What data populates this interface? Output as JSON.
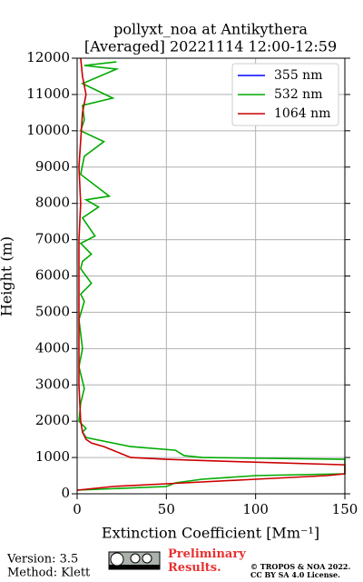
{
  "chart_data": {
    "type": "line",
    "title": "pollyxt_noa at Antikythera",
    "subtitle": "[Averaged] 20221114 12:00-12:59",
    "x_label": "Extinction Coefficient [Mm⁻¹]",
    "y_label": "Height (m)",
    "xlim": [
      0,
      150
    ],
    "ylim": [
      0,
      12000
    ],
    "xticks": [
      0,
      50,
      100,
      150
    ],
    "yticks": [
      0,
      1000,
      2000,
      3000,
      4000,
      5000,
      6000,
      7000,
      8000,
      9000,
      10000,
      11000,
      12000
    ],
    "grid": true,
    "legend": "upper right",
    "series": [
      {
        "name": "355 nm",
        "color": "#0000ff",
        "x": [],
        "y": []
      },
      {
        "name": "532 nm",
        "color": "#00aa00",
        "x": [
          0,
          50,
          55,
          70,
          100,
          150,
          150,
          70,
          60,
          55,
          30,
          20,
          5,
          3,
          5,
          3,
          1,
          2,
          4,
          1,
          3,
          1,
          4,
          2,
          8,
          2,
          3,
          8,
          2,
          10,
          3,
          12,
          5,
          18,
          2,
          4,
          15,
          2,
          4,
          3,
          20,
          3,
          22,
          4,
          22
        ],
        "y": [
          100,
          200,
          300,
          400,
          500,
          550,
          950,
          1000,
          1050,
          1200,
          1300,
          1400,
          1550,
          1700,
          1800,
          1900,
          2000,
          2500,
          2900,
          3500,
          4000,
          4800,
          5300,
          5500,
          5800,
          6200,
          6400,
          6600,
          6900,
          7100,
          7600,
          7900,
          8100,
          8200,
          8800,
          9300,
          9700,
          10000,
          10300,
          10700,
          10900,
          11300,
          11700,
          11800,
          11900
        ]
      },
      {
        "name": "1064 nm",
        "color": "#cc0000",
        "x": [
          0,
          20,
          60,
          100,
          140,
          150,
          150,
          80,
          50,
          30,
          25,
          20,
          15,
          8,
          5,
          3,
          2,
          1,
          1,
          1,
          2,
          1,
          3,
          5,
          3,
          2
        ],
        "y": [
          100,
          200,
          300,
          400,
          500,
          550,
          800,
          900,
          950,
          1000,
          1100,
          1200,
          1300,
          1400,
          1500,
          1700,
          2000,
          3000,
          5000,
          7000,
          8000,
          9000,
          10500,
          11000,
          11500,
          12000
        ]
      }
    ]
  },
  "footer": {
    "version": "Version: 3.5",
    "method": "Method: Klett",
    "preliminary": "Preliminary Results.",
    "copyright": "© TROPOS & NOA 2022.",
    "license": "CC BY SA 4.0 License."
  }
}
